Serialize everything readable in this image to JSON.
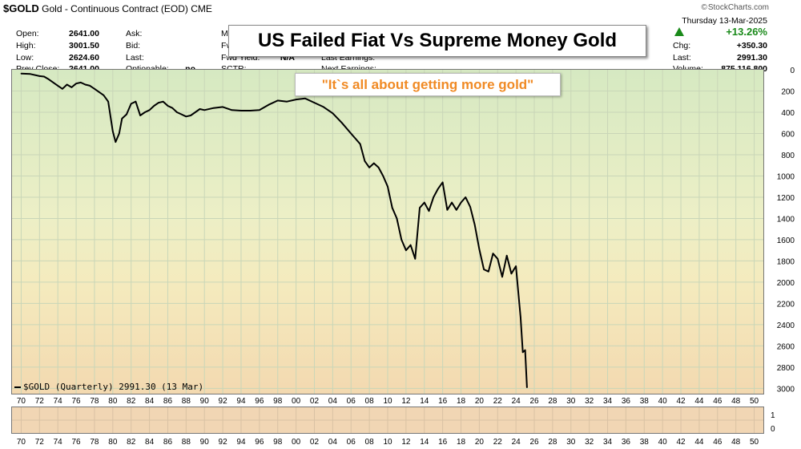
{
  "header": {
    "symbol": "$GOLD",
    "description": "Gold - Continuous Contract (EOD)",
    "exchange": "CME",
    "brand": "StockCharts.com",
    "left_quotes": [
      {
        "label": "Open:",
        "value": "2641.00"
      },
      {
        "label": "High:",
        "value": "3001.50"
      },
      {
        "label": "Low:",
        "value": "2624.60"
      },
      {
        "label": "Prev Close:",
        "value": "2641.00"
      }
    ],
    "mid_quotes": [
      {
        "label": "Ask:",
        "value": ""
      },
      {
        "label": "Bid:",
        "value": ""
      },
      {
        "label": "Last:",
        "value": ""
      },
      {
        "label": "Optionable:",
        "value": "no"
      }
    ],
    "partial_labels": [
      "Mk",
      "Fv",
      "Fwd Yield:",
      "SCTR:"
    ],
    "fwd_yield": "N/A",
    "earnings_labels": [
      "Last Earnings:",
      "Next Earnings:"
    ],
    "date": "Thursday  13-Mar-2025",
    "pct_change": "+13.26%",
    "right_quotes": [
      {
        "label": "Chg:",
        "value": "+350.30"
      },
      {
        "label": "Last:",
        "value": "2991.30"
      },
      {
        "label": "Volume:",
        "value": "875,116,800"
      }
    ]
  },
  "annotations": {
    "title": "US Failed Fiat Vs Supreme Money Gold",
    "quote": "\"It`s all about getting more gold\""
  },
  "legend": "$GOLD (Quarterly) 2991.30 (13 Mar)",
  "colors": {
    "line": "#000000",
    "up": "#1a8a1a",
    "quote": "#f08a24",
    "grid": "#c9d6b8"
  },
  "chart_data": {
    "type": "line",
    "title": "US Failed Fiat Vs Supreme Money Gold",
    "series": [
      {
        "name": "$GOLD (Quarterly)",
        "points": [
          [
            1970.0,
            36
          ],
          [
            1971.0,
            40
          ],
          [
            1972.0,
            60
          ],
          [
            1972.5,
            64
          ],
          [
            1973.0,
            90
          ],
          [
            1973.5,
            120
          ],
          [
            1974.0,
            150
          ],
          [
            1974.5,
            180
          ],
          [
            1975.0,
            140
          ],
          [
            1975.5,
            165
          ],
          [
            1976.0,
            130
          ],
          [
            1976.5,
            120
          ],
          [
            1977.0,
            140
          ],
          [
            1977.5,
            150
          ],
          [
            1978.0,
            180
          ],
          [
            1978.5,
            210
          ],
          [
            1979.0,
            240
          ],
          [
            1979.5,
            300
          ],
          [
            1980.0,
            580
          ],
          [
            1980.3,
            680
          ],
          [
            1980.7,
            600
          ],
          [
            1981.0,
            460
          ],
          [
            1981.5,
            420
          ],
          [
            1982.0,
            320
          ],
          [
            1982.5,
            300
          ],
          [
            1983.0,
            430
          ],
          [
            1983.5,
            400
          ],
          [
            1984.0,
            380
          ],
          [
            1984.5,
            340
          ],
          [
            1985.0,
            310
          ],
          [
            1985.5,
            300
          ],
          [
            1986.0,
            340
          ],
          [
            1986.5,
            360
          ],
          [
            1987.0,
            400
          ],
          [
            1987.5,
            420
          ],
          [
            1988.0,
            440
          ],
          [
            1988.5,
            430
          ],
          [
            1989.0,
            400
          ],
          [
            1989.5,
            370
          ],
          [
            1990.0,
            380
          ],
          [
            1991.0,
            360
          ],
          [
            1992.0,
            350
          ],
          [
            1993.0,
            380
          ],
          [
            1994.0,
            385
          ],
          [
            1995.0,
            385
          ],
          [
            1996.0,
            380
          ],
          [
            1997.0,
            330
          ],
          [
            1998.0,
            290
          ],
          [
            1999.0,
            300
          ],
          [
            2000.0,
            280
          ],
          [
            2001.0,
            270
          ],
          [
            2002.0,
            310
          ],
          [
            2003.0,
            350
          ],
          [
            2004.0,
            410
          ],
          [
            2005.0,
            500
          ],
          [
            2006.0,
            600
          ],
          [
            2006.5,
            650
          ],
          [
            2007.0,
            700
          ],
          [
            2007.5,
            860
          ],
          [
            2008.0,
            920
          ],
          [
            2008.5,
            880
          ],
          [
            2009.0,
            920
          ],
          [
            2009.5,
            1000
          ],
          [
            2010.0,
            1100
          ],
          [
            2010.5,
            1300
          ],
          [
            2011.0,
            1400
          ],
          [
            2011.5,
            1600
          ],
          [
            2012.0,
            1700
          ],
          [
            2012.5,
            1650
          ],
          [
            2013.0,
            1780
          ],
          [
            2013.5,
            1300
          ],
          [
            2014.0,
            1250
          ],
          [
            2014.5,
            1330
          ],
          [
            2015.0,
            1200
          ],
          [
            2015.5,
            1120
          ],
          [
            2016.0,
            1060
          ],
          [
            2016.5,
            1320
          ],
          [
            2017.0,
            1250
          ],
          [
            2017.5,
            1320
          ],
          [
            2018.0,
            1250
          ],
          [
            2018.5,
            1200
          ],
          [
            2019.0,
            1290
          ],
          [
            2019.5,
            1460
          ],
          [
            2020.0,
            1690
          ],
          [
            2020.5,
            1880
          ],
          [
            2021.0,
            1900
          ],
          [
            2021.5,
            1730
          ],
          [
            2022.0,
            1780
          ],
          [
            2022.5,
            1950
          ],
          [
            2023.0,
            1750
          ],
          [
            2023.5,
            1920
          ],
          [
            2024.0,
            1850
          ],
          [
            2024.5,
            2330
          ],
          [
            2024.75,
            2660
          ],
          [
            2025.0,
            2640
          ],
          [
            2025.2,
            2991
          ]
        ]
      }
    ],
    "xlim": [
      1969,
      2051
    ],
    "x_ticks": [
      "70",
      "72",
      "74",
      "76",
      "78",
      "80",
      "82",
      "84",
      "86",
      "88",
      "90",
      "92",
      "94",
      "96",
      "98",
      "00",
      "02",
      "04",
      "06",
      "08",
      "10",
      "12",
      "14",
      "16",
      "18",
      "20",
      "22",
      "24",
      "26",
      "28",
      "30",
      "32",
      "34",
      "36",
      "38",
      "40",
      "42",
      "44",
      "46",
      "48",
      "50"
    ],
    "ylim": [
      0,
      3050
    ],
    "y_inverted": true,
    "y_ticks": [
      0,
      200,
      400,
      600,
      800,
      1000,
      1200,
      1400,
      1600,
      1800,
      2000,
      2200,
      2400,
      2600,
      2800,
      3000
    ],
    "sub_y_ticks": [
      1,
      0
    ],
    "grid": true
  }
}
